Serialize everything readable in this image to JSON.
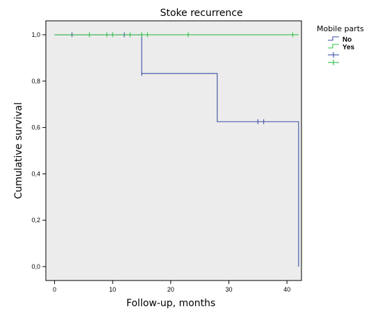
{
  "chart_data": {
    "type": "line",
    "subtype": "kaplan-meier",
    "title": "Stoke recurrence",
    "xlabel": "Follow-up, months",
    "ylabel": "Cumulative survival",
    "xlim": [
      -1.5,
      42.5
    ],
    "ylim": [
      -0.06,
      1.06
    ],
    "x_ticks": [
      0,
      10,
      20,
      30,
      40
    ],
    "y_ticks": [
      0.0,
      0.2,
      0.4,
      0.6,
      0.8,
      1.0
    ],
    "y_tick_labels": [
      "0,0",
      "0,2",
      "0,4",
      "0,6",
      "0,8",
      "1,0"
    ],
    "plot_background": "#ececec",
    "legend": {
      "title": "Mobile parts",
      "position": "right",
      "entries": [
        {
          "label": "No",
          "marker": "step",
          "color": "#3b4fa3"
        },
        {
          "label": "Yes",
          "marker": "step",
          "color": "#2fbf47"
        },
        {
          "label": "",
          "marker": "censor",
          "color": "#3b4fa3"
        },
        {
          "label": "",
          "marker": "censor",
          "color": "#2fbf47"
        }
      ]
    },
    "series": [
      {
        "name": "No",
        "color": "#3b4fa3",
        "steps": [
          [
            0,
            1.0
          ],
          [
            15,
            0.833
          ],
          [
            28,
            0.625
          ],
          [
            42,
            0.0
          ]
        ],
        "end": 42,
        "censored": [
          [
            3,
            1.0
          ],
          [
            12,
            1.0
          ],
          [
            15,
            0.833
          ],
          [
            35,
            0.625
          ],
          [
            36,
            0.625
          ]
        ]
      },
      {
        "name": "Yes",
        "color": "#2fbf47",
        "steps": [
          [
            0,
            1.0
          ]
        ],
        "end": 42,
        "censored": [
          [
            6,
            1.0
          ],
          [
            9,
            1.0
          ],
          [
            10,
            1.0
          ],
          [
            13,
            1.0
          ],
          [
            15,
            1.0
          ],
          [
            16,
            1.0
          ],
          [
            23,
            1.0
          ],
          [
            41,
            1.0
          ]
        ]
      }
    ]
  }
}
